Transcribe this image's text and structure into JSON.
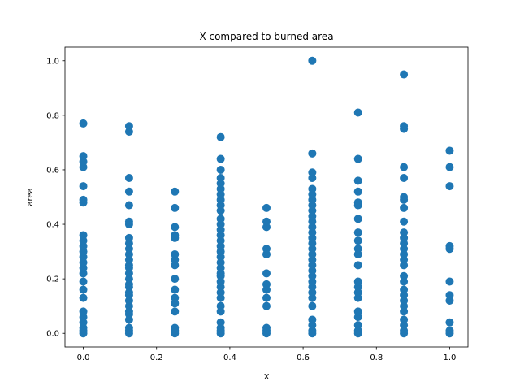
{
  "chart_data": {
    "type": "scatter",
    "title": "X compared to burned area",
    "xlabel": "X",
    "ylabel": "area",
    "xlim": [
      -0.05,
      1.05
    ],
    "ylim": [
      -0.05,
      1.05
    ],
    "xticks": [
      0.0,
      0.2,
      0.4,
      0.6,
      0.8,
      1.0
    ],
    "xtick_labels": [
      "0.0",
      "0.2",
      "0.4",
      "0.6",
      "0.8",
      "1.0"
    ],
    "yticks": [
      0.0,
      0.2,
      0.4,
      0.6,
      0.8,
      1.0
    ],
    "ytick_labels": [
      "0.0",
      "0.2",
      "0.4",
      "0.6",
      "0.8",
      "1.0"
    ],
    "grid": false,
    "marker_color": "#1f77b4",
    "series": [
      {
        "x": 0.0,
        "y": [
          0.0,
          0.01,
          0.02,
          0.04,
          0.06,
          0.08,
          0.13,
          0.16,
          0.19,
          0.22,
          0.24,
          0.26,
          0.28,
          0.3,
          0.32,
          0.34,
          0.36,
          0.48,
          0.49,
          0.54,
          0.61,
          0.63,
          0.65,
          0.77
        ]
      },
      {
        "x": 0.125,
        "y": [
          0.0,
          0.01,
          0.02,
          0.05,
          0.07,
          0.08,
          0.1,
          0.12,
          0.14,
          0.15,
          0.17,
          0.18,
          0.2,
          0.22,
          0.24,
          0.25,
          0.27,
          0.29,
          0.31,
          0.33,
          0.35,
          0.4,
          0.41,
          0.47,
          0.52,
          0.57,
          0.74,
          0.76
        ]
      },
      {
        "x": 0.25,
        "y": [
          0.0,
          0.01,
          0.02,
          0.08,
          0.11,
          0.13,
          0.16,
          0.2,
          0.25,
          0.27,
          0.29,
          0.35,
          0.36,
          0.39,
          0.46,
          0.52
        ]
      },
      {
        "x": 0.375,
        "y": [
          0.0,
          0.01,
          0.02,
          0.04,
          0.08,
          0.1,
          0.13,
          0.15,
          0.17,
          0.19,
          0.21,
          0.22,
          0.24,
          0.26,
          0.28,
          0.3,
          0.32,
          0.34,
          0.36,
          0.38,
          0.4,
          0.42,
          0.45,
          0.47,
          0.49,
          0.51,
          0.53,
          0.55,
          0.57,
          0.6,
          0.64,
          0.72
        ]
      },
      {
        "x": 0.5,
        "y": [
          0.0,
          0.01,
          0.02,
          0.1,
          0.13,
          0.16,
          0.18,
          0.22,
          0.29,
          0.31,
          0.39,
          0.41,
          0.46
        ]
      },
      {
        "x": 0.625,
        "y": [
          0.0,
          0.01,
          0.03,
          0.05,
          0.1,
          0.13,
          0.15,
          0.17,
          0.19,
          0.21,
          0.23,
          0.25,
          0.27,
          0.29,
          0.31,
          0.33,
          0.35,
          0.37,
          0.39,
          0.41,
          0.43,
          0.45,
          0.47,
          0.49,
          0.51,
          0.53,
          0.57,
          0.59,
          0.66,
          1.0
        ]
      },
      {
        "x": 0.75,
        "y": [
          0.0,
          0.01,
          0.03,
          0.06,
          0.08,
          0.13,
          0.15,
          0.17,
          0.19,
          0.25,
          0.29,
          0.31,
          0.34,
          0.37,
          0.42,
          0.47,
          0.48,
          0.52,
          0.56,
          0.64,
          0.81
        ]
      },
      {
        "x": 0.875,
        "y": [
          0.0,
          0.01,
          0.03,
          0.05,
          0.08,
          0.1,
          0.12,
          0.14,
          0.16,
          0.19,
          0.21,
          0.25,
          0.27,
          0.29,
          0.31,
          0.33,
          0.35,
          0.37,
          0.41,
          0.46,
          0.49,
          0.5,
          0.57,
          0.61,
          0.75,
          0.76,
          0.95
        ]
      },
      {
        "x": 1.0,
        "y": [
          0.0,
          0.01,
          0.04,
          0.12,
          0.14,
          0.19,
          0.31,
          0.32,
          0.54,
          0.61,
          0.67
        ]
      }
    ]
  }
}
